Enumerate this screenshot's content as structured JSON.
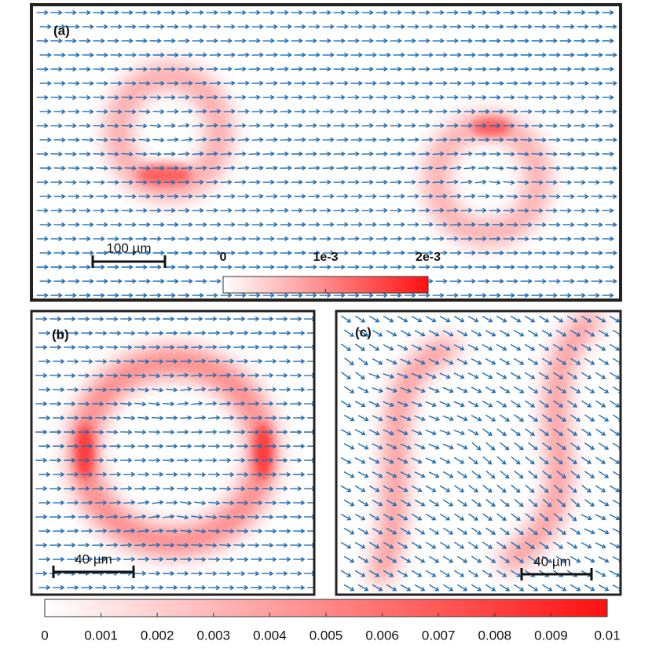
{
  "panels": [
    {
      "label": "(a)",
      "scale_bar": "100 µm"
    },
    {
      "label": "(b)",
      "scale_bar": "40 µm"
    },
    {
      "label": "(c)",
      "scale_bar": "40 µm"
    }
  ],
  "inset_colorbar": {
    "ticks": [
      0,
      {
        "value": 0.001,
        "label": "1e-3"
      },
      {
        "value": 0.002,
        "label": "2e-3"
      }
    ]
  },
  "colorbar": {
    "ticks": [
      0,
      0.001,
      0.002,
      0.003,
      0.004,
      0.005,
      0.006,
      0.007,
      0.008,
      0.009,
      0.01
    ]
  }
}
